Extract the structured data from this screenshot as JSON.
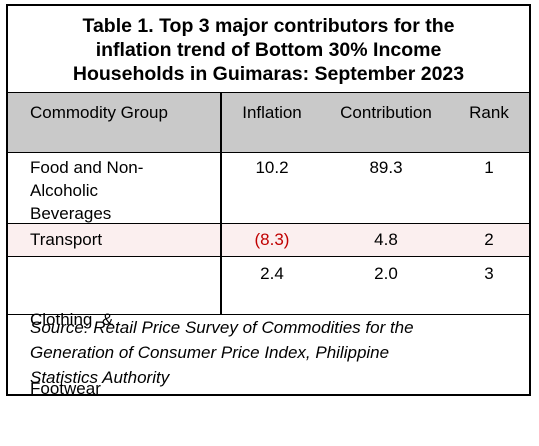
{
  "title": {
    "line1": "Table 1. Top 3 major contributors for the",
    "line2": "inflation trend of Bottom 30% Income",
    "line3": "Households in Guimaras: September 2023"
  },
  "columns": {
    "commodity": "Commodity Group",
    "inflation": "Inflation",
    "contribution": "Contribution",
    "rank": "Rank"
  },
  "rows": [
    {
      "commodity_lines": [
        "Food and Non-",
        "Alcoholic",
        "Beverages"
      ],
      "inflation": "10.2",
      "contribution": "89.3",
      "rank": "1"
    },
    {
      "commodity_lines": [
        "Transport"
      ],
      "inflation": "(8.3)",
      "contribution": "4.8",
      "rank": "2"
    },
    {
      "commodity_lines": [
        "Clothing  &",
        "Footwear"
      ],
      "inflation": "2.4",
      "contribution": "2.0",
      "rank": "3"
    }
  ],
  "source": {
    "line1": "Source: Retail Price Survey of Commodities for the",
    "line2": "Generation of Consumer Price Index, Philippine",
    "line3": "Statistics Authority"
  },
  "colors": {
    "header_bg": "#c9c9c9",
    "negative_value": "#c00000",
    "highlight_row": "#fbefef"
  }
}
